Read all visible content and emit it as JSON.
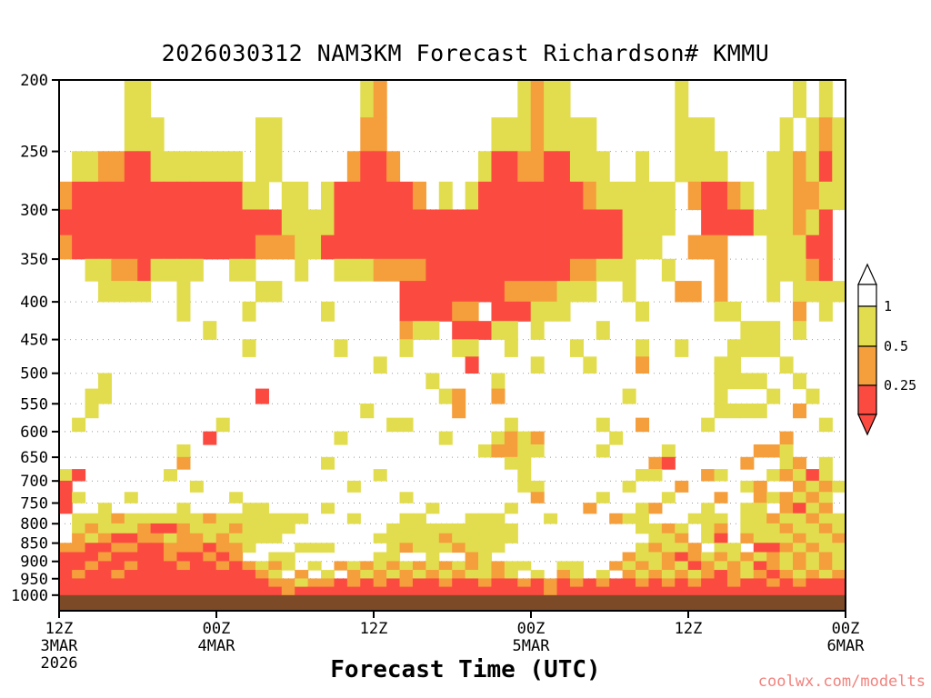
{
  "title": "2026030312 NAM3KM Forecast Richardson# KMMU",
  "xlabel": "Forecast Time (UTC)",
  "watermark": "coolwx.com/modelts",
  "chart_data": {
    "type": "heatmap",
    "title": "2026030312 NAM3KM Forecast Richardson# KMMU",
    "model": "NAM3KM",
    "init_time": "2026030312",
    "variable": "Richardson#",
    "station": "KMMU",
    "xlabel": "Forecast Time (UTC)",
    "ylabel": "",
    "y_scale": "log-pressure",
    "ylim": [
      200,
      1050
    ],
    "xlim_hours": [
      0,
      60
    ],
    "grid_on": true,
    "gridlines_at": [
      250,
      300,
      350,
      400,
      450,
      500,
      550,
      600,
      650,
      700,
      750,
      800,
      850,
      900,
      950
    ],
    "y_ticks": [
      "200",
      "250",
      "300",
      "350",
      "400",
      "450",
      "500",
      "550",
      "600",
      "650",
      "700",
      "750",
      "800",
      "850",
      "900",
      "950",
      "1000"
    ],
    "x_ticks": [
      {
        "hour": 0,
        "label": "12Z",
        "date": "3MAR",
        "year": "2026"
      },
      {
        "hour": 12,
        "label": "00Z",
        "date": "4MAR"
      },
      {
        "hour": 24,
        "label": "12Z"
      },
      {
        "hour": 36,
        "label": "00Z",
        "date": "5MAR"
      },
      {
        "hour": 48,
        "label": "12Z"
      },
      {
        "hour": 60,
        "label": "00Z",
        "date": "6MAR"
      }
    ],
    "colorbar": {
      "position": "right",
      "labels": [
        "1",
        "0.5",
        "0.25"
      ],
      "segments": [
        "#ffffff",
        "#e2dd4f",
        "#f59e3c",
        "#fb4b41"
      ],
      "top_arrow_color": "#ffffff",
      "bottom_arrow_color": "#fb4b41"
    },
    "grid_colors": {
      "y": "#e2dd4f",
      "o": "#f59e3c",
      "r": "#fb4b41"
    },
    "grid_encoding": {
      ".": "Ri > 1 (white)",
      "y": "0.5 < Ri <= 1 (yellow)",
      "o": "0.25 < Ri <= 0.5 (orange)",
      "r": "Ri <= 0.25 (red)"
    },
    "terrain_color": "#7d4a28",
    "pressure_levels": [
      200,
      225,
      250,
      275,
      300,
      325,
      350,
      375,
      400,
      425,
      450,
      475,
      500,
      525,
      550,
      575,
      600,
      625,
      650,
      675,
      700,
      725,
      750,
      775,
      800,
      825,
      850,
      875,
      900,
      925,
      950,
      975,
      1000
    ],
    "columns_note": "Each grid column = 1 forecast hour, hour 0 = 12Z 3MAR 2026 to hour 60 = 00Z 6MAR; each row spans between consecutive pressure_levels",
    "grid": [
      [
        ".....yy...",
        "..........",
        "...yo.....",
        ".....yoyy.",
        ".......y..",
        "......y.y."
      ],
      [
        ".....yyy..",
        ".....yy...",
        "...oo.....",
        "...yyyoyyy",
        "y......yyy",
        ".....y.yoy"
      ],
      [
        ".yyoorryyy",
        "yyyy.yy...",
        "..orro....",
        "..yrroorry",
        "yy..y..yyy",
        "y...yyoyry"
      ],
      [
        "orrrrrrrrr",
        "rrrryy.yy.",
        "yrrrrrro.y",
        ".yrrrrrrrr",
        "oyyyyyy.or",
        "roy.yyooyy"
      ],
      [
        "rrrrrrrrrr",
        "rrrrrrryyy",
        "yrrrrrrrrr",
        "rrrrrrrrrr",
        "rrryyyy..r",
        "rrryyyoyr."
      ],
      [
        "orrrrrrrrr",
        "rrrrroooyy",
        "rrrrrrrrrr",
        "rrrrrrrrrr",
        "rrryyy..oo",
        "o...yyyrr."
      ],
      [
        "..yyooryyy",
        "y..yy...y.",
        ".yyyoooorr",
        "rrrrrrrrro",
        "oyyy..y...",
        "o...yyyor."
      ],
      [
        "...yyyy..y",
        ".....yy...",
        "......rrrr",
        "rrrrooooyy",
        "y..y...oo.",
        "o...y.yyyy"
      ],
      [
        ".........y",
        "....y.....",
        "y.....rrrr",
        "oo.rrryyy.",
        "....y.....",
        "yy....o.y."
      ],
      [
        "..........",
        ".y........",
        "......oyy.",
        "rrryy.y...",
        ".y........",
        "..yyy.y..."
      ],
      [
        "..........",
        "....y.....",
        ".y....y...",
        "yy..y....y",
        "....y..y..",
        ".yyyy....."
      ],
      [
        "..........",
        "..........",
        "....y.....",
        ".r....y...",
        "y...o.....",
        "yy...y...."
      ],
      [
        "...y......",
        "..........",
        "........y.",
        "...y......",
        "..........",
        "yyyy..y..."
      ],
      [
        "..yy......",
        ".....r....",
        ".........y",
        "o..o......",
        "...y......",
        "y...y..y.."
      ],
      [
        "..y.......",
        "..........",
        "...y......",
        "o.........",
        "..........",
        "yyyy..o..."
      ],
      [
        ".y........",
        "..y.......",
        ".....yy...",
        "....y.....",
        ".y..o....y",
        "........y."
      ],
      [
        "..........",
        ".r........",
        ".y.......y",
        "...yoyo...",
        "..y.......",
        ".....o...."
      ],
      [
        ".........y",
        "..........",
        "..........",
        "..yooyy...",
        ".y....y...",
        "...ooy...."
      ],
      [
        ".........o",
        "..........",
        "y.........",
        "....yy....",
        ".....or...",
        "..o..yo.y."
      ],
      [
        "yr......y.",
        "..........",
        "....y.....",
        ".....y....",
        "....yy...o",
        "y...yoyry."
      ],
      [
        "r.........",
        "y.........",
        "..y.......",
        ".....yy...",
        "...y...o..",
        "..yo..oyoy"
      ],
      [
        "ry...y....",
        "...y......",
        "......y...",
        "......o...",
        ".y....y...",
        "o..oyoyoy."
      ],
      [
        "r..y.....y",
        "....yy....",
        "y.......y.",
        "....y.....",
        "o...yo...y",
        "..yy.oryo."
      ],
      [
        ".yyyoyyyyy",
        "yoyyyyyyy.",
        "..y...yy..",
        ".yyy...y..",
        "..oyy...yy",
        "y.yyoyyoyy"
      ],
      [
        ".yoyyyorro",
        "yyyoyyyy..",
        ".....yyyyy",
        "yyyyy.....",
        "....yyoy.y",
        "o.yyyoyyoy"
      ],
      [
        ".oyorrooyo",
        "oyoyyyy...",
        "....yyyyyo",
        "yyyyy.....",
        ".....yyo.y",
        "r.oyyyoyyo"
      ],
      [
        "oorroorroo",
        "orooy...yy",
        "y....yoyyy",
        "oyyy......",
        "....yoyyo.",
        "yy.rroyoyy"
      ],
      [
        "rrrorrrror",
        "roro..yy..",
        "....yy..y.",
        ".oy.......",
        "...oyyoroy",
        "oyoyoyoyoy"
      ],
      [
        "rrorrorrro",
        "rroroyoy.y",
        ".oyoyoyoyo",
        "yoyoyy..yy",
        "..oyoyoyro",
        "yoyroyoyoy"
      ],
      [
        "rorrorrrrr",
        "rrrrroy.o.",
        "y.oyoyoyoy",
        "oyyoy.y.oy",
        ".y.oyoyoyo",
        "royoroyoyo"
      ],
      [
        "rrrrrrrrrr",
        "rrrrrrooyo",
        "ororororro",
        "rrorrororo",
        "rorrororor",
        "rorrororrr"
      ],
      [
        "rrrrrrrrrr",
        "rrrrrrrorr",
        "rrrrrrrrrr",
        "rrrrrrrorr",
        "rrrrrrrrrr",
        "rrrrrrrrrr"
      ]
    ]
  }
}
